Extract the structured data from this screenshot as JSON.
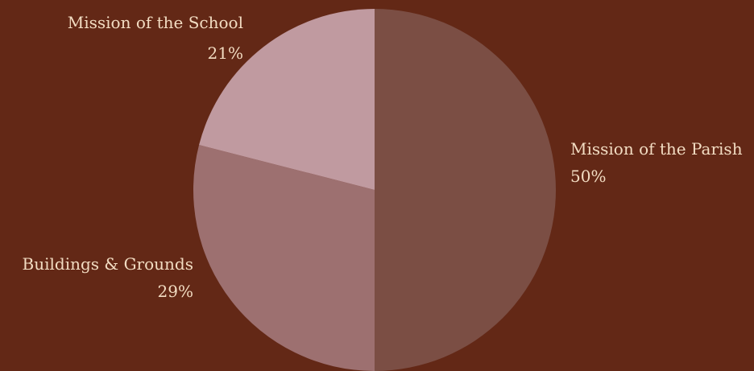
{
  "colors": {
    "background": "#632816",
    "label_text": "#f2dcc2"
  },
  "chart_data": {
    "type": "pie",
    "start": "12 o'clock, clockwise",
    "slices": [
      {
        "name": "Mission of the Parish",
        "percent_label": "50%",
        "value": 50,
        "color": "#7b4e44"
      },
      {
        "name": "Buildings & Grounds",
        "percent_label": "29%",
        "value": 29,
        "color": "#9d7070"
      },
      {
        "name": "Mission of the School",
        "percent_label": "21%",
        "value": 21,
        "color": "#c09aa0"
      }
    ]
  }
}
